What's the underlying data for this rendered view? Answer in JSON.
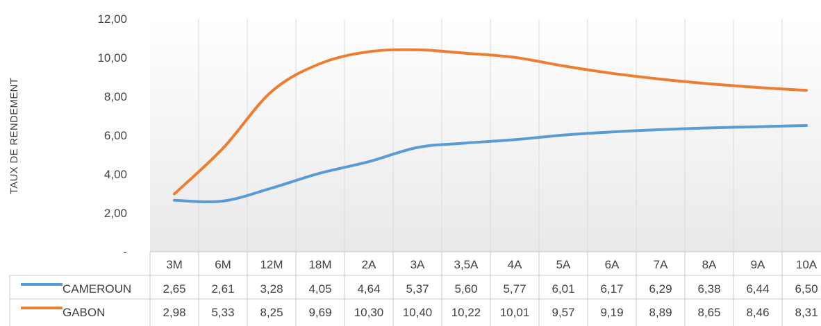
{
  "chart_data": {
    "type": "line",
    "ylabel": "TAUX DE RENDEMENT",
    "xlabel": "",
    "ylim": [
      0,
      12
    ],
    "y_ticks": [
      {
        "value": 0,
        "label": "-"
      },
      {
        "value": 2,
        "label": "2,00"
      },
      {
        "value": 4,
        "label": "4,00"
      },
      {
        "value": 6,
        "label": "6,00"
      },
      {
        "value": 8,
        "label": "8,00"
      },
      {
        "value": 10,
        "label": "10,00"
      },
      {
        "value": 12,
        "label": "12,00"
      }
    ],
    "grid": "vertical",
    "legend": "data-table",
    "categories": [
      "3M",
      "6M",
      "12M",
      "18M",
      "2A",
      "3A",
      "3,5A",
      "4A",
      "5A",
      "6A",
      "7A",
      "8A",
      "9A",
      "10A"
    ],
    "series": [
      {
        "name": "CAMEROUN",
        "color": "#5B9BD5",
        "values": [
          2.65,
          2.61,
          3.28,
          4.05,
          4.64,
          5.37,
          5.6,
          5.77,
          6.01,
          6.17,
          6.29,
          6.38,
          6.44,
          6.5
        ],
        "labels": [
          "2,65",
          "2,61",
          "3,28",
          "4,05",
          "4,64",
          "5,37",
          "5,60",
          "5,77",
          "6,01",
          "6,17",
          "6,29",
          "6,38",
          "6,44",
          "6,50"
        ]
      },
      {
        "name": "GABON",
        "color": "#ED7D31",
        "values": [
          2.98,
          5.33,
          8.25,
          9.69,
          10.3,
          10.4,
          10.22,
          10.01,
          9.57,
          9.19,
          8.89,
          8.65,
          8.46,
          8.31
        ],
        "labels": [
          "2,98",
          "5,33",
          "8,25",
          "9,69",
          "10,30",
          "10,40",
          "10,22",
          "10,01",
          "9,57",
          "9,19",
          "8,89",
          "8,65",
          "8,46",
          "8,31"
        ]
      }
    ]
  }
}
